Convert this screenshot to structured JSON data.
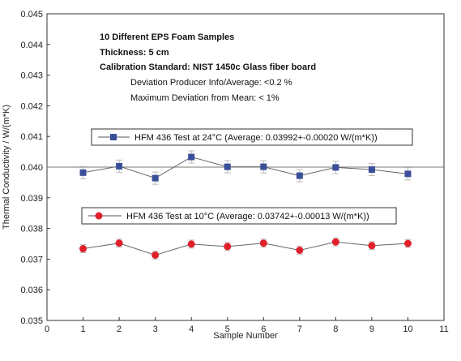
{
  "chart_data": {
    "type": "scatter",
    "xlabel": "Sample Number",
    "ylabel": "Thermal Conductivity / W/(m*K)",
    "xlim": [
      0,
      11
    ],
    "ylim": [
      0.035,
      0.045
    ],
    "x_ticks": [
      0,
      1,
      2,
      3,
      4,
      5,
      6,
      7,
      8,
      9,
      10,
      11
    ],
    "y_ticks": [
      "0.035",
      "0.036",
      "0.037",
      "0.038",
      "0.039",
      "0.040",
      "0.041",
      "0.042",
      "0.043",
      "0.044",
      "0.045"
    ],
    "grid": false,
    "reference_line_y": 0.04,
    "annotations": {
      "bold_lines": [
        "10 Different EPS Foam Samples",
        "Thickness: 5 cm",
        "Calibration Standard: NIST 1450c Glass fiber board"
      ],
      "lines": [
        "Deviation Producer Info/Average: <0.2 %",
        "Maximum Deviation from Mean: < 1%"
      ]
    },
    "series": [
      {
        "name": "HFM 436 Test at 24°C (Average: 0.03992+-0.00020 W/(m*K))",
        "marker": "square",
        "color": "#3a4f9a",
        "x": [
          1,
          2,
          3,
          4,
          5,
          6,
          7,
          8,
          9,
          10
        ],
        "y": [
          0.03982,
          0.04003,
          0.03964,
          0.04033,
          0.04001,
          0.04001,
          0.03972,
          0.03999,
          0.03992,
          0.03978
        ],
        "error": 0.0002
      },
      {
        "name": "HFM 436 Test at 10°C (Average: 0.03742+-0.00013 W/(m*K))",
        "marker": "circle",
        "color": "#e0202a",
        "x": [
          1,
          2,
          3,
          4,
          5,
          6,
          7,
          8,
          9,
          10
        ],
        "y": [
          0.03734,
          0.03752,
          0.03713,
          0.03749,
          0.03741,
          0.03752,
          0.03729,
          0.03756,
          0.03744,
          0.03751
        ],
        "error": 0.00013
      }
    ]
  }
}
